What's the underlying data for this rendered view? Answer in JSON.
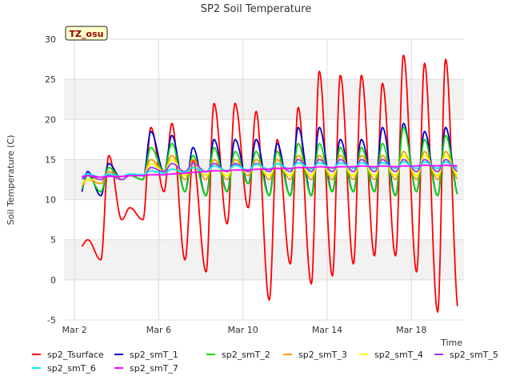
{
  "chart_data": {
    "type": "line",
    "title": "SP2 Soil Temperature",
    "xlabel": "Time",
    "ylabel": "Soil Temperature (C)",
    "badge": "TZ_osu",
    "ylim": [
      -5,
      30
    ],
    "xlim_days": [
      0,
      18
    ],
    "yticks": [
      "-5",
      "0",
      "5",
      "10",
      "15",
      "20",
      "25",
      "30"
    ],
    "xticks": [
      {
        "day": 0,
        "label": "Mar 2"
      },
      {
        "day": 4,
        "label": "Mar 6"
      },
      {
        "day": 8,
        "label": "Mar 10"
      },
      {
        "day": 12,
        "label": "Mar 14"
      },
      {
        "day": 16,
        "label": "Mar 18"
      }
    ],
    "grid": true,
    "legend_position": "bottom",
    "series": [
      {
        "name": "sp2_Tsurface",
        "color": "#ff0000",
        "daily_max": [
          5,
          15.5,
          9,
          19,
          19.5,
          15,
          22,
          22,
          21,
          17.5,
          21.5,
          26,
          25.5,
          25.5,
          24.5,
          28,
          27,
          27.5
        ],
        "daily_min": [
          4,
          2.5,
          7.5,
          7.5,
          11,
          2.5,
          1,
          7,
          9,
          -2.5,
          2,
          -0.5,
          0.5,
          2,
          3,
          3,
          1,
          -4
        ]
      },
      {
        "name": "sp2_smT_1",
        "color": "#0000cc",
        "daily_max": [
          13.5,
          14.5,
          13,
          18.5,
          18,
          16.5,
          17.5,
          17.5,
          17.5,
          17,
          19,
          19,
          17.5,
          17.5,
          19,
          19.5,
          18.5,
          19
        ],
        "daily_min": [
          10.5,
          10.5,
          12.5,
          12.5,
          13.5,
          11,
          10.5,
          11,
          12,
          10.5,
          10.5,
          10.5,
          11,
          11,
          11,
          10.5,
          11,
          10.5
        ]
      },
      {
        "name": "sp2_smT_2",
        "color": "#00dd00",
        "daily_max": [
          13,
          14,
          13,
          16.5,
          17,
          15.5,
          16.5,
          16,
          16,
          16,
          17,
          17,
          16.5,
          16.5,
          17,
          19,
          17.5,
          18
        ],
        "daily_min": [
          11,
          11,
          12.5,
          12.5,
          13.5,
          11,
          10.5,
          11,
          12,
          10.5,
          10.5,
          10.5,
          11,
          11,
          11,
          10.5,
          11,
          10.5
        ]
      },
      {
        "name": "sp2_smT_3",
        "color": "#ff9900",
        "daily_max": [
          12.5,
          13.5,
          13,
          15,
          15.5,
          15,
          15,
          15,
          15,
          15,
          15.5,
          15.5,
          15.5,
          15.5,
          15.5,
          16,
          16,
          16
        ],
        "daily_min": [
          11.5,
          12,
          12.5,
          13,
          13.5,
          12.5,
          12.5,
          12.5,
          13,
          12.5,
          12.5,
          12.5,
          12.5,
          12.5,
          12.5,
          12.5,
          12.5,
          12.5
        ]
      },
      {
        "name": "sp2_smT_4",
        "color": "#ffff00",
        "daily_max": [
          12.5,
          13,
          13,
          14.5,
          15,
          14.5,
          14.5,
          14.5,
          14.5,
          14.5,
          15,
          15,
          15,
          15,
          15,
          15.5,
          15.5,
          15.5
        ],
        "daily_min": [
          12,
          12.5,
          12.5,
          13,
          13.5,
          13,
          13,
          13,
          13.5,
          13,
          13,
          13,
          13,
          13,
          13,
          13,
          13,
          13
        ]
      },
      {
        "name": "sp2_smT_5",
        "color": "#9933ff",
        "daily_max": [
          13,
          13,
          13,
          14,
          14.5,
          14.5,
          14.5,
          14.5,
          14.5,
          14.5,
          15,
          15,
          15,
          15,
          15,
          15,
          15,
          15
        ],
        "daily_min": [
          12.5,
          12.5,
          12.5,
          13,
          13.5,
          13.5,
          13.5,
          13.5,
          13.5,
          13.5,
          13.5,
          13.5,
          13.5,
          13.5,
          13.5,
          13.5,
          13.5,
          13.5
        ]
      },
      {
        "name": "sp2_smT_6",
        "color": "#00eeee",
        "daily_max": [
          13.2,
          13.2,
          13.2,
          13.6,
          13.8,
          14,
          14.2,
          14.3,
          14.4,
          14.5,
          14.6,
          14.6,
          14.6,
          14.6,
          14.6,
          14.7,
          14.7,
          14.7
        ],
        "daily_min": [
          12.8,
          12.8,
          12.9,
          13.1,
          13.3,
          13.4,
          13.5,
          13.6,
          13.7,
          13.8,
          13.8,
          13.8,
          13.9,
          13.9,
          13.9,
          13.9,
          13.9,
          13.9
        ]
      },
      {
        "name": "sp2_smT_7",
        "color": "#ff00ff",
        "daily_max": [
          13,
          12.9,
          13,
          13.1,
          13.2,
          13.4,
          13.6,
          13.7,
          13.8,
          13.9,
          14,
          14.1,
          14.1,
          14.2,
          14.2,
          14.2,
          14.3,
          14.3
        ],
        "daily_min": [
          12.8,
          12.8,
          12.9,
          13,
          13.1,
          13.3,
          13.5,
          13.6,
          13.7,
          13.8,
          13.9,
          14,
          14,
          14.1,
          14.1,
          14.1,
          14.2,
          14.2
        ]
      }
    ]
  }
}
